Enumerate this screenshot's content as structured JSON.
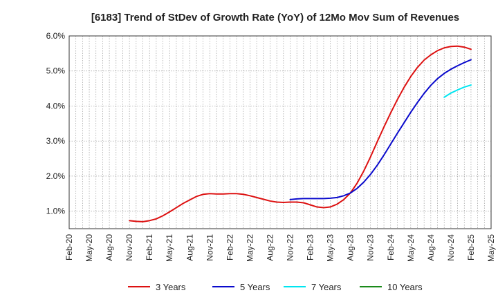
{
  "chart_data": {
    "type": "line",
    "title": "[6183]  Trend of StDev of Growth Rate (YoY) of 12Mo Mov Sum of Revenues",
    "xlabel": "",
    "ylabel": "",
    "x_ticks": [
      "Feb-20",
      "May-20",
      "Aug-20",
      "Nov-20",
      "Feb-21",
      "May-21",
      "Aug-21",
      "Nov-21",
      "Feb-22",
      "May-22",
      "Aug-22",
      "Nov-22",
      "Feb-23",
      "May-23",
      "Aug-23",
      "Nov-23",
      "Feb-24",
      "May-24",
      "Aug-24",
      "Nov-24",
      "Feb-25",
      "May-25"
    ],
    "y_ticks": [
      "1.0%",
      "2.0%",
      "3.0%",
      "4.0%",
      "5.0%",
      "6.0%"
    ],
    "y_tick_values": [
      1.0,
      2.0,
      3.0,
      4.0,
      5.0,
      6.0
    ],
    "ylim": [
      0.5,
      6.0
    ],
    "grid": true,
    "legend_position": "bottom",
    "series": [
      {
        "name": "3 Years",
        "color": "#dd1111",
        "x": [
          "Nov-20",
          "Dec-20",
          "Jan-21",
          "Feb-21",
          "Mar-21",
          "Apr-21",
          "May-21",
          "Jun-21",
          "Jul-21",
          "Aug-21",
          "Sep-21",
          "Oct-21",
          "Nov-21",
          "Dec-21",
          "Jan-22",
          "Feb-22",
          "Mar-22",
          "Apr-22",
          "May-22",
          "Jun-22",
          "Jul-22",
          "Aug-22",
          "Sep-22",
          "Oct-22",
          "Nov-22",
          "Dec-22",
          "Jan-23",
          "Feb-23",
          "Mar-23",
          "Apr-23",
          "May-23",
          "Jun-23",
          "Jul-23",
          "Aug-23",
          "Sep-23",
          "Oct-23",
          "Nov-23",
          "Dec-23",
          "Jan-24",
          "Feb-24",
          "Mar-24",
          "Apr-24",
          "May-24",
          "Jun-24",
          "Jul-24",
          "Aug-24",
          "Sep-24",
          "Oct-24",
          "Nov-24",
          "Dec-24",
          "Jan-25",
          "Feb-25"
        ],
        "values": [
          0.73,
          0.71,
          0.7,
          0.73,
          0.78,
          0.87,
          0.98,
          1.1,
          1.22,
          1.32,
          1.42,
          1.48,
          1.5,
          1.49,
          1.49,
          1.5,
          1.5,
          1.48,
          1.44,
          1.39,
          1.34,
          1.29,
          1.26,
          1.25,
          1.26,
          1.26,
          1.24,
          1.18,
          1.12,
          1.1,
          1.12,
          1.2,
          1.33,
          1.52,
          1.8,
          2.15,
          2.55,
          2.98,
          3.4,
          3.8,
          4.18,
          4.53,
          4.84,
          5.1,
          5.31,
          5.46,
          5.58,
          5.66,
          5.7,
          5.71,
          5.68,
          5.62
        ]
      },
      {
        "name": "5 Years",
        "color": "#0a0acc",
        "x": [
          "Nov-22",
          "Dec-22",
          "Jan-23",
          "Feb-23",
          "Mar-23",
          "Apr-23",
          "May-23",
          "Jun-23",
          "Jul-23",
          "Aug-23",
          "Sep-23",
          "Oct-23",
          "Nov-23",
          "Dec-23",
          "Jan-24",
          "Feb-24",
          "Mar-24",
          "Apr-24",
          "May-24",
          "Jun-24",
          "Jul-24",
          "Aug-24",
          "Sep-24",
          "Oct-24",
          "Nov-24",
          "Dec-24",
          "Jan-25",
          "Feb-25"
        ],
        "values": [
          1.33,
          1.35,
          1.36,
          1.36,
          1.36,
          1.36,
          1.37,
          1.39,
          1.44,
          1.52,
          1.65,
          1.83,
          2.05,
          2.31,
          2.6,
          2.91,
          3.22,
          3.52,
          3.82,
          4.1,
          4.36,
          4.59,
          4.78,
          4.93,
          5.05,
          5.15,
          5.24,
          5.32
        ]
      },
      {
        "name": "7 Years",
        "color": "#00e5f0",
        "x": [
          "Oct-24",
          "Nov-24",
          "Dec-24",
          "Jan-25",
          "Feb-25"
        ],
        "values": [
          4.25,
          4.37,
          4.46,
          4.54,
          4.6
        ]
      },
      {
        "name": "10 Years",
        "color": "#1a8a1a",
        "x": [],
        "values": []
      }
    ]
  }
}
